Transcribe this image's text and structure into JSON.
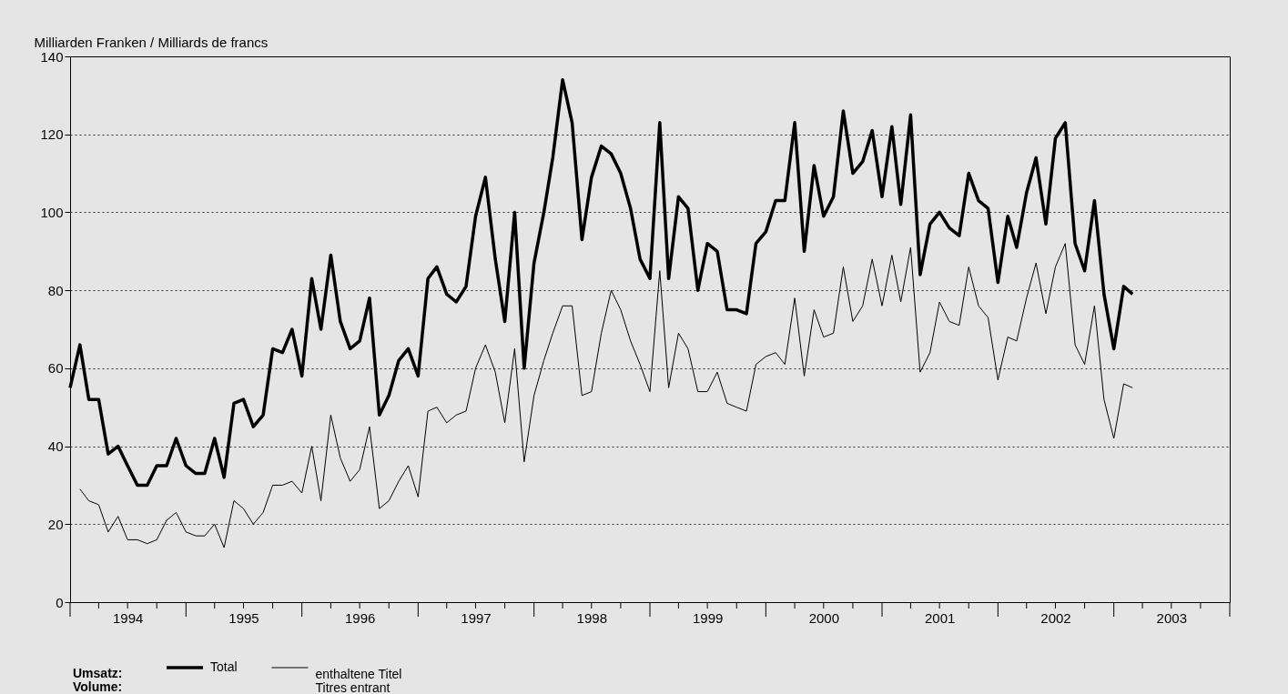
{
  "chart_data": {
    "type": "line",
    "ylabel": "Milliarden Franken / Milliards de francs",
    "legend_title": "Umsatz:\nVolume:",
    "x": [
      "1994-01",
      "1994-02",
      "1994-03",
      "1994-04",
      "1994-05",
      "1994-06",
      "1994-07",
      "1994-08",
      "1994-09",
      "1994-10",
      "1994-11",
      "1994-12",
      "1995-01",
      "1995-02",
      "1995-03",
      "1995-04",
      "1995-05",
      "1995-06",
      "1995-07",
      "1995-08",
      "1995-09",
      "1995-10",
      "1995-11",
      "1995-12",
      "1996-01",
      "1996-02",
      "1996-03",
      "1996-04",
      "1996-05",
      "1996-06",
      "1996-07",
      "1996-08",
      "1996-09",
      "1996-10",
      "1996-11",
      "1996-12",
      "1997-01",
      "1997-02",
      "1997-03",
      "1997-04",
      "1997-05",
      "1997-06",
      "1997-07",
      "1997-08",
      "1997-09",
      "1997-10",
      "1997-11",
      "1997-12",
      "1998-01",
      "1998-02",
      "1998-03",
      "1998-04",
      "1998-05",
      "1998-06",
      "1998-07",
      "1998-08",
      "1998-09",
      "1998-10",
      "1998-11",
      "1998-12",
      "1999-01",
      "1999-02",
      "1999-03",
      "1999-04",
      "1999-05",
      "1999-06",
      "1999-07",
      "1999-08",
      "1999-09",
      "1999-10",
      "1999-11",
      "1999-12",
      "2000-01",
      "2000-02",
      "2000-03",
      "2000-04",
      "2000-05",
      "2000-06",
      "2000-07",
      "2000-08",
      "2000-09",
      "2000-10",
      "2000-11",
      "2000-12",
      "2001-01",
      "2001-02",
      "2001-03",
      "2001-04",
      "2001-05",
      "2001-06",
      "2001-07",
      "2001-08",
      "2001-09",
      "2001-10",
      "2001-11",
      "2001-12",
      "2002-01",
      "2002-02",
      "2002-03",
      "2002-04",
      "2002-05",
      "2002-06",
      "2002-07",
      "2002-08",
      "2002-09",
      "2002-10",
      "2002-11",
      "2002-12",
      "2003-01",
      "2003-02",
      "2003-03"
    ],
    "series": [
      {
        "name": "Total",
        "color": "#000000",
        "values": [
          55,
          66,
          52,
          52,
          38,
          40,
          35,
          30,
          30,
          35,
          35,
          42,
          35,
          33,
          33,
          42,
          32,
          51,
          52,
          45,
          48,
          65,
          64,
          70,
          58,
          83,
          70,
          89,
          72,
          65,
          67,
          78,
          48,
          53,
          62,
          65,
          58,
          83,
          86,
          79,
          77,
          81,
          99,
          109,
          88,
          72,
          100,
          60,
          87,
          100,
          114,
          134,
          123,
          93,
          109,
          117,
          115,
          110,
          101,
          88,
          83,
          123,
          83,
          104,
          101,
          80,
          92,
          90,
          75,
          75,
          74,
          92,
          95,
          103,
          103,
          123,
          90,
          112,
          99,
          104,
          126,
          110,
          113,
          121,
          104,
          122,
          102,
          125,
          84,
          97,
          100,
          96,
          94,
          110,
          103,
          101,
          82,
          99,
          91,
          105,
          114,
          97,
          119,
          123,
          92,
          85,
          103,
          79,
          65,
          81,
          79
        ]
      },
      {
        "name": "enthaltene Titel\nTitres entrant",
        "color": "#000000",
        "values": [
          null,
          29,
          26,
          25,
          18,
          22,
          16,
          16,
          15,
          16,
          21,
          23,
          18,
          17,
          17,
          20,
          14,
          26,
          24,
          20,
          23,
          30,
          30,
          31,
          28,
          40,
          26,
          48,
          37,
          31,
          34,
          45,
          24,
          26,
          31,
          35,
          27,
          49,
          50,
          46,
          48,
          49,
          60,
          66,
          59,
          46,
          65,
          36,
          53,
          62,
          69,
          76,
          76,
          53,
          54,
          69,
          80,
          75,
          67,
          61,
          54,
          85,
          55,
          69,
          65,
          54,
          54,
          59,
          51,
          50,
          49,
          61,
          63,
          64,
          61,
          78,
          58,
          75,
          68,
          69,
          86,
          72,
          76,
          88,
          76,
          89,
          77,
          91,
          59,
          64,
          77,
          72,
          71,
          86,
          76,
          73,
          57,
          68,
          67,
          78,
          87,
          74,
          86,
          92,
          66,
          61,
          76,
          52,
          42,
          56,
          55
        ]
      }
    ],
    "xlim": [
      "1994-01",
      "2004-01"
    ],
    "xticks": [
      {
        "value": "1994-01",
        "label": null
      },
      {
        "value": "1994-04",
        "label": null
      },
      {
        "value": "1994-07",
        "label": "1994"
      },
      {
        "value": "1994-10",
        "label": null
      },
      {
        "value": "1995-01",
        "label": null
      },
      {
        "value": "1995-04",
        "label": null
      },
      {
        "value": "1995-07",
        "label": "1995"
      },
      {
        "value": "1995-10",
        "label": null
      },
      {
        "value": "1996-01",
        "label": null
      },
      {
        "value": "1996-04",
        "label": null
      },
      {
        "value": "1996-07",
        "label": "1996"
      },
      {
        "value": "1996-10",
        "label": null
      },
      {
        "value": "1997-01",
        "label": null
      },
      {
        "value": "1997-04",
        "label": null
      },
      {
        "value": "1997-07",
        "label": "1997"
      },
      {
        "value": "1997-10",
        "label": null
      },
      {
        "value": "1998-01",
        "label": null
      },
      {
        "value": "1998-04",
        "label": null
      },
      {
        "value": "1998-07",
        "label": "1998"
      },
      {
        "value": "1998-10",
        "label": null
      },
      {
        "value": "1999-01",
        "label": null
      },
      {
        "value": "1999-04",
        "label": null
      },
      {
        "value": "1999-07",
        "label": "1999"
      },
      {
        "value": "1999-10",
        "label": null
      },
      {
        "value": "2000-01",
        "label": null
      },
      {
        "value": "2000-04",
        "label": null
      },
      {
        "value": "2000-07",
        "label": "2000"
      },
      {
        "value": "2000-10",
        "label": null
      },
      {
        "value": "2001-01",
        "label": null
      },
      {
        "value": "2001-04",
        "label": null
      },
      {
        "value": "2001-07",
        "label": "2001"
      },
      {
        "value": "2001-10",
        "label": null
      },
      {
        "value": "2002-01",
        "label": null
      },
      {
        "value": "2002-04",
        "label": null
      },
      {
        "value": "2002-07",
        "label": "2002"
      },
      {
        "value": "2002-10",
        "label": null
      },
      {
        "value": "2003-01",
        "label": null
      },
      {
        "value": "2003-04",
        "label": null
      },
      {
        "value": "2003-07",
        "label": "2003"
      },
      {
        "value": "2003-10",
        "label": null
      },
      {
        "value": "2004-01",
        "label": null
      }
    ],
    "ylim": [
      0,
      140
    ],
    "yticks": [
      0,
      20,
      40,
      60,
      80,
      100,
      120,
      140
    ],
    "grid": "y",
    "legend": "bottom left",
    "line_style": "solid"
  }
}
